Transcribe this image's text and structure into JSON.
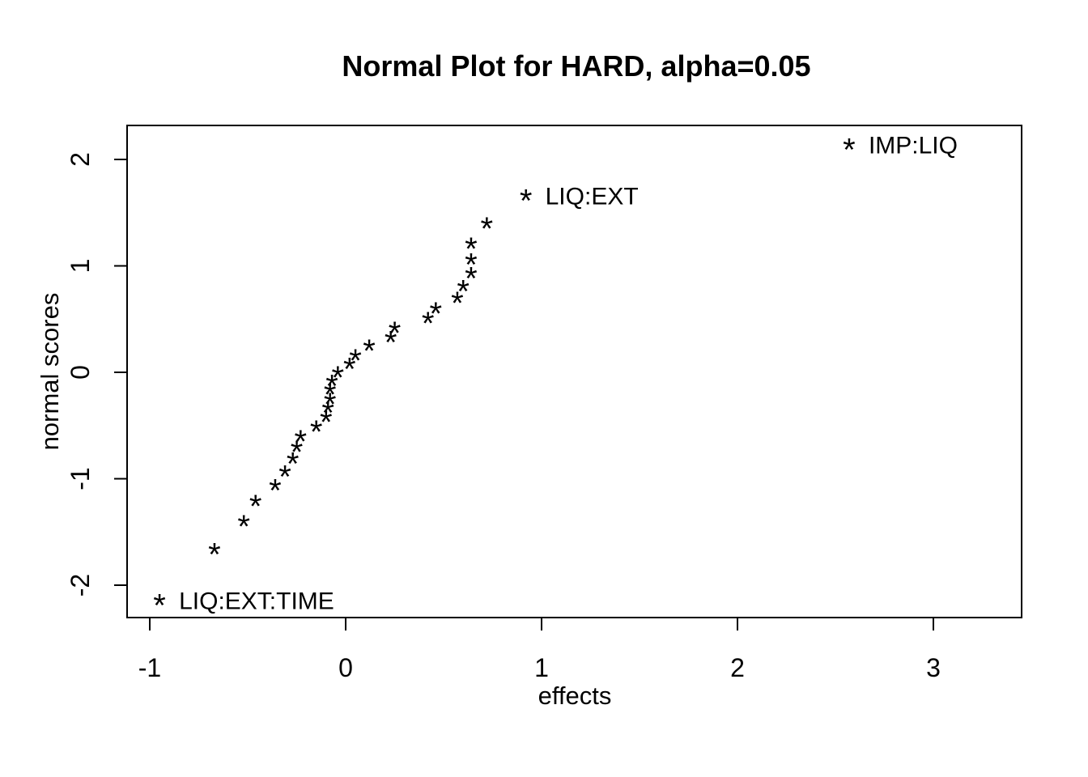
{
  "figure": {
    "background": "#ffffff",
    "foreground": "#000000"
  },
  "chart_data": {
    "type": "scatter",
    "title": "Normal Plot for HARD, alpha=0.05",
    "xlabel": "effects",
    "ylabel": "normal scores",
    "xticks": [
      -1,
      0,
      1,
      2,
      3
    ],
    "yticks": [
      -2,
      -1,
      0,
      1,
      2
    ],
    "xlim": [
      -1.12,
      3.45
    ],
    "ylim": [
      -2.32,
      2.32
    ],
    "grid": false,
    "legend": null,
    "marker": "*",
    "points": [
      {
        "effect": -0.95,
        "score": -2.14,
        "label": "LIQ:EXT:TIME"
      },
      {
        "effect": -0.67,
        "score": -1.66,
        "label": null
      },
      {
        "effect": -0.52,
        "score": -1.4,
        "label": null
      },
      {
        "effect": -0.46,
        "score": -1.21,
        "label": null
      },
      {
        "effect": -0.36,
        "score": -1.06,
        "label": null
      },
      {
        "effect": -0.31,
        "score": -0.93,
        "label": null
      },
      {
        "effect": -0.27,
        "score": -0.81,
        "label": null
      },
      {
        "effect": -0.25,
        "score": -0.7,
        "label": null
      },
      {
        "effect": -0.23,
        "score": -0.6,
        "label": null
      },
      {
        "effect": -0.15,
        "score": -0.51,
        "label": null
      },
      {
        "effect": -0.1,
        "score": -0.42,
        "label": null
      },
      {
        "effect": -0.09,
        "score": -0.33,
        "label": null
      },
      {
        "effect": -0.08,
        "score": -0.25,
        "label": null
      },
      {
        "effect": -0.08,
        "score": -0.16,
        "label": null
      },
      {
        "effect": -0.07,
        "score": -0.08,
        "label": null
      },
      {
        "effect": -0.04,
        "score": 0.0,
        "label": null
      },
      {
        "effect": 0.02,
        "score": 0.08,
        "label": null
      },
      {
        "effect": 0.05,
        "score": 0.16,
        "label": null
      },
      {
        "effect": 0.12,
        "score": 0.25,
        "label": null
      },
      {
        "effect": 0.23,
        "score": 0.33,
        "label": null
      },
      {
        "effect": 0.25,
        "score": 0.42,
        "label": null
      },
      {
        "effect": 0.42,
        "score": 0.51,
        "label": null
      },
      {
        "effect": 0.46,
        "score": 0.6,
        "label": null
      },
      {
        "effect": 0.57,
        "score": 0.7,
        "label": null
      },
      {
        "effect": 0.6,
        "score": 0.81,
        "label": null
      },
      {
        "effect": 0.64,
        "score": 0.93,
        "label": null
      },
      {
        "effect": 0.64,
        "score": 1.06,
        "label": null
      },
      {
        "effect": 0.64,
        "score": 1.21,
        "label": null
      },
      {
        "effect": 0.72,
        "score": 1.4,
        "label": null
      },
      {
        "effect": 0.92,
        "score": 1.66,
        "label": "LIQ:EXT"
      },
      {
        "effect": 2.57,
        "score": 2.14,
        "label": "IMP:LIQ"
      }
    ]
  }
}
